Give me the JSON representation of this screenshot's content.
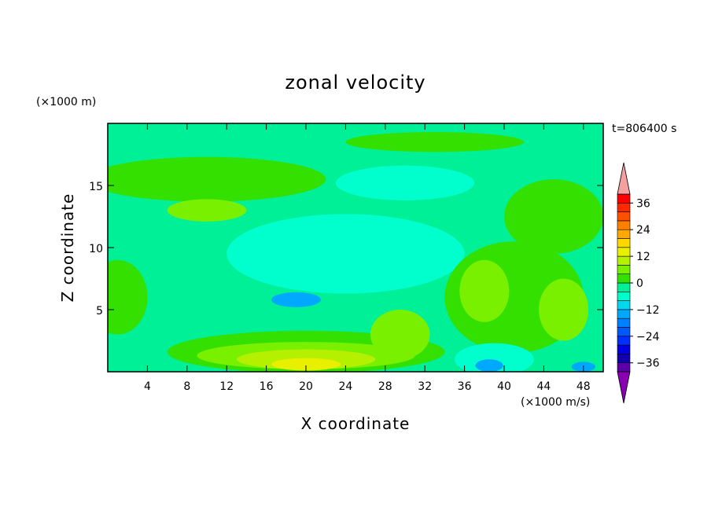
{
  "chart_data": {
    "type": "heatmap",
    "title": "zonal velocity",
    "xlabel": "X coordinate",
    "ylabel": "Z coordinate",
    "x_unit": "(×1000 m/s)",
    "y_unit": "(×1000 m)",
    "time_label": "t=806400 s",
    "xlim": [
      0,
      50
    ],
    "ylim": [
      0,
      20
    ],
    "x_ticks": [
      4,
      8,
      12,
      16,
      20,
      24,
      28,
      32,
      36,
      40,
      44,
      48
    ],
    "y_ticks": [
      5,
      10,
      15
    ],
    "colorbar": {
      "levels": [
        -40,
        -36,
        -32,
        -28,
        -24,
        -20,
        -16,
        -12,
        -8,
        -4,
        0,
        4,
        8,
        12,
        16,
        20,
        24,
        28,
        32,
        36,
        40
      ],
      "colors": [
        "#5c00a8",
        "#1200b0",
        "#0000e0",
        "#0030ff",
        "#0058ff",
        "#0080ff",
        "#00a8ff",
        "#00d8f0",
        "#00ffcc",
        "#00f098",
        "#34e000",
        "#78f000",
        "#b4f000",
        "#e8f000",
        "#ffd800",
        "#ffa800",
        "#ff8000",
        "#ff5000",
        "#ff2800",
        "#ff0000"
      ],
      "tick_labels": [
        "36",
        "24",
        "12",
        "0",
        "−12",
        "−24",
        "−36"
      ],
      "tick_values": [
        36,
        24,
        12,
        0,
        -12,
        -24,
        -36
      ],
      "upper_extend_color": "#f4a0a0",
      "lower_extend_color": "#8800b0"
    },
    "background_value": -4,
    "regions": [
      {
        "feature": "cyan core (upper-middle)",
        "x": 24,
        "z": 9.5,
        "rx": 12,
        "rz": 3.2,
        "value": -8
      },
      {
        "feature": "blue patch",
        "x": 19,
        "z": 5.8,
        "rx": 2.5,
        "rz": 0.6,
        "value": -16
      },
      {
        "feature": "upper cyan band",
        "x": 30,
        "z": 15.2,
        "rx": 7,
        "rz": 1.4,
        "value": -8
      },
      {
        "feature": "left green band",
        "x": 10,
        "z": 15.5,
        "rx": 12,
        "rz": 1.8,
        "value": 0
      },
      {
        "feature": "left light-green patch",
        "x": 10,
        "z": 13,
        "rx": 4,
        "rz": 0.9,
        "value": 4
      },
      {
        "feature": "top green strip",
        "x": 33,
        "z": 18.5,
        "rx": 9,
        "rz": 0.8,
        "value": 0
      },
      {
        "feature": "right upper green",
        "x": 45,
        "z": 12.5,
        "rx": 5,
        "rz": 3,
        "value": 0
      },
      {
        "feature": "right green region",
        "x": 41,
        "z": 6,
        "rx": 7,
        "rz": 4.5,
        "value": 0
      },
      {
        "feature": "right light-green patch",
        "x": 38,
        "z": 6.5,
        "rx": 2.5,
        "rz": 2.5,
        "value": 4
      },
      {
        "feature": "right light-green patch 2",
        "x": 46,
        "z": 5,
        "rx": 2.5,
        "rz": 2.5,
        "value": 4
      },
      {
        "feature": "left edge green",
        "x": 1,
        "z": 6,
        "rx": 3,
        "rz": 3,
        "value": 0
      },
      {
        "feature": "bottom green band",
        "x": 20,
        "z": 1.6,
        "rx": 14,
        "rz": 1.7,
        "value": 0
      },
      {
        "feature": "bottom light-green",
        "x": 20,
        "z": 1.3,
        "rx": 11,
        "rz": 1.1,
        "value": 4
      },
      {
        "feature": "bottom yellow-green",
        "x": 20,
        "z": 1,
        "rx": 7,
        "rz": 0.8,
        "value": 8
      },
      {
        "feature": "bottom yellow core",
        "x": 20,
        "z": 0.6,
        "rx": 3.5,
        "rz": 0.5,
        "value": 12
      },
      {
        "feature": "mid-right green bump",
        "x": 29.5,
        "z": 3,
        "rx": 3,
        "rz": 2,
        "value": 4
      },
      {
        "feature": "bottom-right cyan",
        "x": 39,
        "z": 1,
        "rx": 4,
        "rz": 1.3,
        "value": -8
      },
      {
        "feature": "bottom-right blue",
        "x": 38.5,
        "z": 0.5,
        "rx": 1.4,
        "rz": 0.5,
        "value": -16
      },
      {
        "feature": "bottom-right blue 2",
        "x": 48,
        "z": 0.4,
        "rx": 1.2,
        "rz": 0.4,
        "value": -16
      }
    ]
  }
}
